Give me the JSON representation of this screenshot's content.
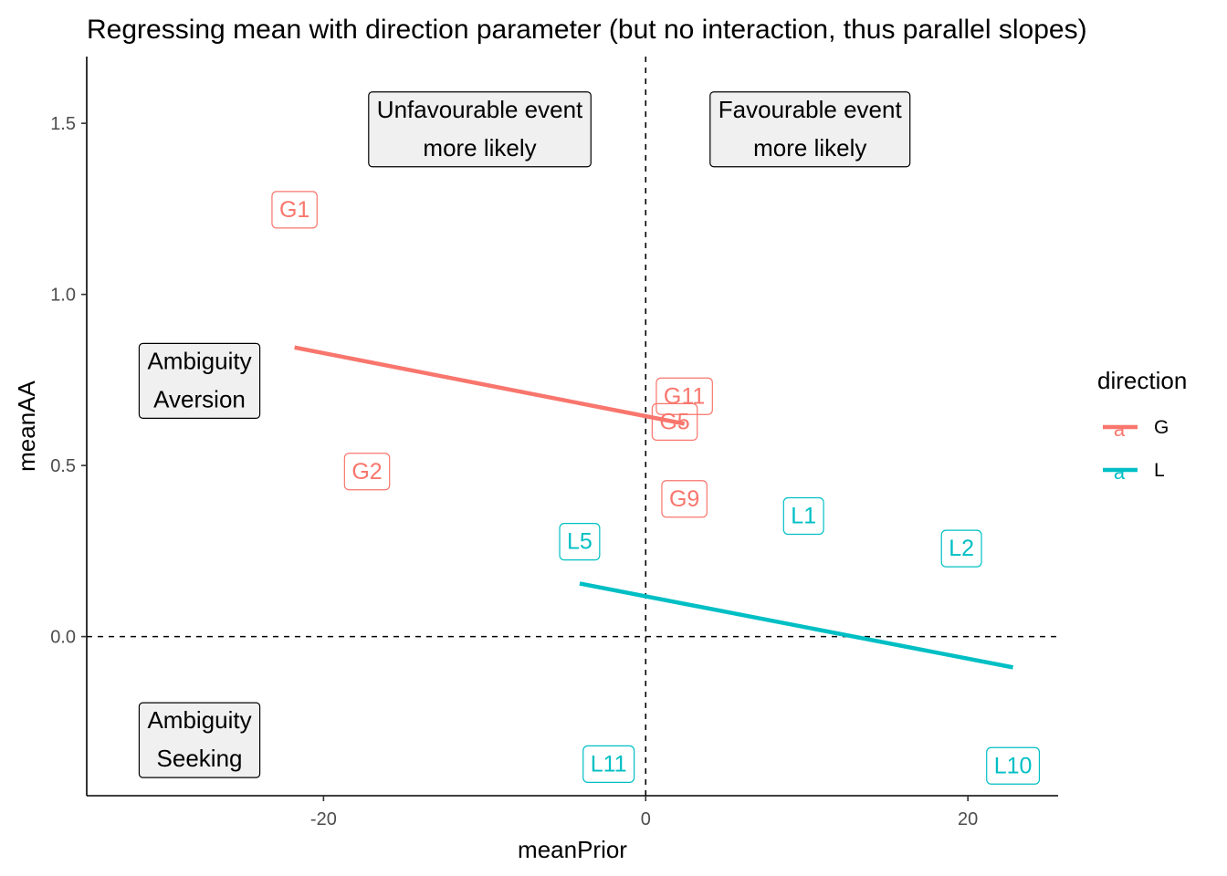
{
  "chart_data": {
    "type": "scatter",
    "title": "Regressing mean with direction parameter (but no interaction, thus parallel slopes)",
    "xlabel": "meanPrior",
    "ylabel": "meanAA",
    "xlim": [
      -34.7,
      25.6
    ],
    "ylim": [
      -0.465,
      1.695
    ],
    "x_ticks": [
      -20,
      0,
      20
    ],
    "x_tick_labels": [
      "-20",
      "0",
      "20"
    ],
    "y_ticks": [
      0.0,
      0.5,
      1.0,
      1.5
    ],
    "y_tick_labels": [
      "0.0",
      "0.5",
      "1.0",
      "1.5"
    ],
    "grid": false,
    "reference_lines": {
      "x": 0,
      "y": 0,
      "style": "dashed"
    },
    "legend": {
      "title": "direction",
      "position": "right",
      "key_glyph": "a"
    },
    "series": [
      {
        "name": "G",
        "color": "#F8766D",
        "points": [
          {
            "label": "G1",
            "x": -21.8,
            "y": 1.25
          },
          {
            "label": "G2",
            "x": -17.3,
            "y": 0.485
          },
          {
            "label": "G11",
            "x": 2.4,
            "y": 0.705
          },
          {
            "label": "G5",
            "x": 1.8,
            "y": 0.63
          },
          {
            "label": "G9",
            "x": 2.4,
            "y": 0.405
          }
        ],
        "fit": {
          "x": [
            -21.8,
            2.4
          ],
          "y": [
            0.845,
            0.622
          ]
        }
      },
      {
        "name": "L",
        "color": "#00BFC4",
        "points": [
          {
            "label": "L5",
            "x": -4.1,
            "y": 0.28
          },
          {
            "label": "L1",
            "x": 9.8,
            "y": 0.355
          },
          {
            "label": "L2",
            "x": 19.6,
            "y": 0.26
          },
          {
            "label": "L11",
            "x": -2.3,
            "y": -0.37
          },
          {
            "label": "L10",
            "x": 22.8,
            "y": -0.375
          }
        ],
        "fit": {
          "x": [
            -4.1,
            22.8
          ],
          "y": [
            0.155,
            -0.09
          ]
        }
      }
    ],
    "annotations": [
      {
        "lines": [
          "Unfavourable event",
          "more likely"
        ],
        "x": -10.3,
        "y": 1.485
      },
      {
        "lines": [
          "Favourable event",
          "more likely"
        ],
        "x": 10.2,
        "y": 1.485
      },
      {
        "lines": [
          "Ambiguity",
          "Aversion"
        ],
        "x": -27.7,
        "y": 0.75
      },
      {
        "lines": [
          "Ambiguity",
          "Seeking"
        ],
        "x": -27.7,
        "y": -0.3
      }
    ]
  }
}
